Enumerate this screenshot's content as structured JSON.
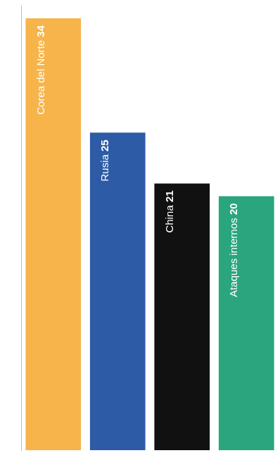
{
  "chart_data": {
    "type": "bar",
    "categories": [
      "Corea del Norte",
      "Rusia",
      "China",
      "Ataques internos"
    ],
    "values": [
      34,
      25,
      21,
      20
    ],
    "colors": [
      "#f6b44b",
      "#2d5ba6",
      "#111111",
      "#2aa57e"
    ],
    "ylim": [
      0,
      35
    ],
    "grid": false,
    "data_labels": true,
    "tick_labels": false
  }
}
